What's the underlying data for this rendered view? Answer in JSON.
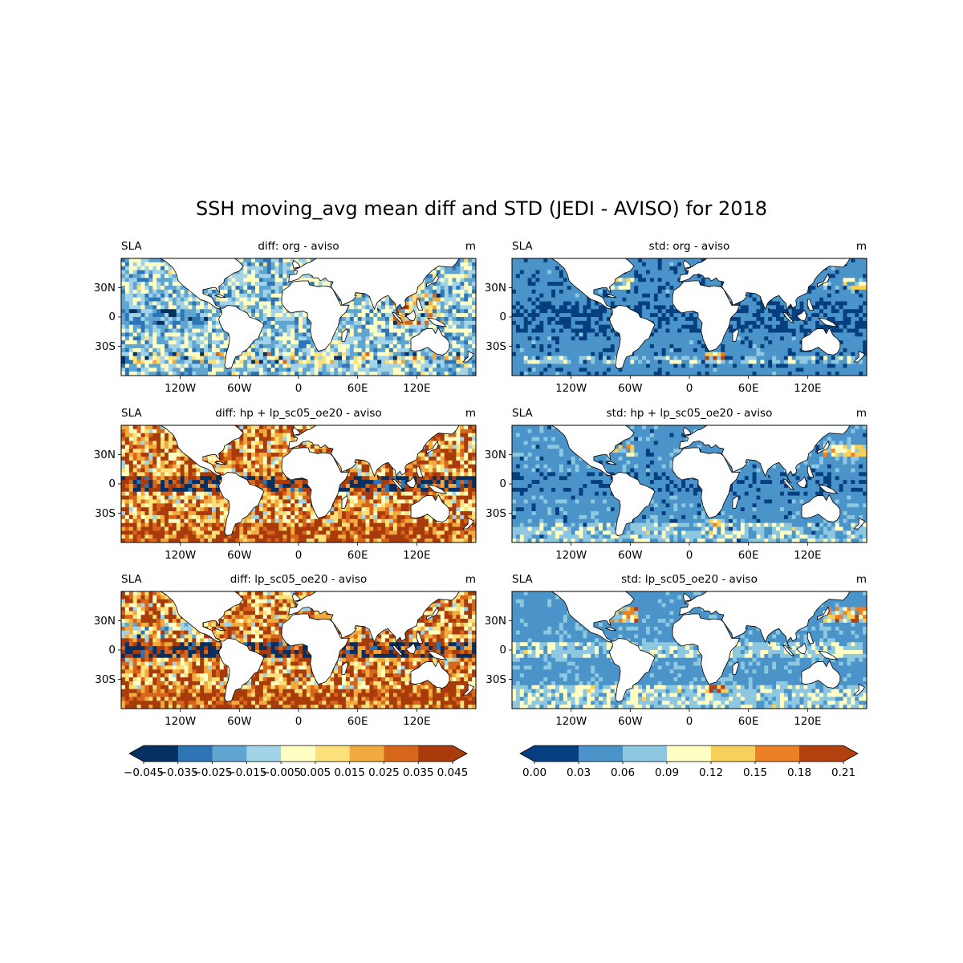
{
  "figure": {
    "title": "SSH moving_avg mean diff and STD (JEDI - AVISO) for 2018"
  },
  "panels": [
    {
      "id": "diff-org",
      "left_label": "SLA",
      "title": "diff: org - aviso",
      "units": "m",
      "kind": "diff",
      "variant": 0
    },
    {
      "id": "std-org",
      "left_label": "SLA",
      "title": "std: org - aviso",
      "units": "m",
      "kind": "std",
      "variant": 0
    },
    {
      "id": "diff-hp-lp",
      "left_label": "SLA",
      "title": "diff: hp + lp_sc05_oe20 - aviso",
      "units": "m",
      "kind": "diff",
      "variant": 1
    },
    {
      "id": "std-hp-lp",
      "left_label": "SLA",
      "title": "std: hp + lp_sc05_oe20 - aviso",
      "units": "m",
      "kind": "std",
      "variant": 1
    },
    {
      "id": "diff-lp",
      "left_label": "SLA",
      "title": "diff: lp_sc05_oe20 - aviso",
      "units": "m",
      "kind": "diff",
      "variant": 2
    },
    {
      "id": "std-lp",
      "left_label": "SLA",
      "title": "std: lp_sc05_oe20 - aviso",
      "units": "m",
      "kind": "std",
      "variant": 2
    }
  ],
  "axes": {
    "x_ticks": [
      {
        "label": "120W",
        "lon": -120
      },
      {
        "label": "60W",
        "lon": -60
      },
      {
        "label": "0",
        "lon": 0
      },
      {
        "label": "60E",
        "lon": 60
      },
      {
        "label": "120E",
        "lon": 120
      }
    ],
    "y_ticks": [
      {
        "label": "30N",
        "lat": 30
      },
      {
        "label": "0",
        "lat": 0
      },
      {
        "label": "30S",
        "lat": -30
      }
    ],
    "lon_range": [
      -180,
      180
    ],
    "lat_range": [
      -60,
      60
    ]
  },
  "colorbars": {
    "diff": {
      "ticks": [
        "−0.045",
        "−0.035",
        "−0.025",
        "−0.015",
        "−0.005",
        "0.005",
        "0.015",
        "0.025",
        "0.035",
        "0.045"
      ],
      "colors": [
        "#053061",
        "#2e75b6",
        "#5fa5cf",
        "#a3d3e6",
        "#ffffc4",
        "#fce07a",
        "#f0aa3e",
        "#d8661a",
        "#a83b0c"
      ],
      "extend": "both"
    },
    "std": {
      "ticks": [
        "0.00",
        "0.03",
        "0.06",
        "0.09",
        "0.12",
        "0.15",
        "0.18",
        "0.21"
      ],
      "colors": [
        "#053f7f",
        "#4a94c9",
        "#8ec8e0",
        "#ffffc4",
        "#f7d05c",
        "#ea8124",
        "#b3400f"
      ],
      "extend": "both"
    }
  }
}
